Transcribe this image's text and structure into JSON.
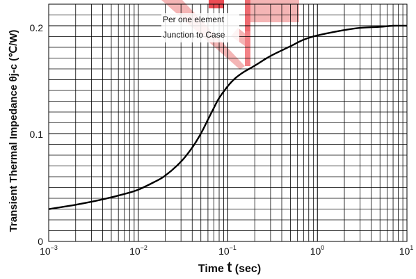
{
  "chart_data": {
    "type": "line",
    "xlabel_main": "Time ",
    "xlabel_symbol": "t",
    "xlabel_unit": " (sec)",
    "ylabel": "Transient Thermal Impedance θj-c (℃/W)",
    "x_scale": "log",
    "xlim": [
      0.001,
      10
    ],
    "ylim": [
      0,
      0.22
    ],
    "x_ticks": [
      {
        "base": "10",
        "exp": "−3"
      },
      {
        "base": "10",
        "exp": "−2"
      },
      {
        "base": "10",
        "exp": "−1"
      },
      {
        "base": "10",
        "exp": "0"
      },
      {
        "base": "10",
        "exp": "1"
      }
    ],
    "y_ticks": [
      "0",
      "0.1",
      "0.2"
    ],
    "annotations": [
      "Per one element",
      "Junction to Case"
    ],
    "grid": true,
    "line_color": "#000000",
    "watermark_color": "#e8202a",
    "series": [
      {
        "x": [
          0.001,
          0.002,
          0.004,
          0.007,
          0.01,
          0.015,
          0.02,
          0.03,
          0.04,
          0.05,
          0.06,
          0.07,
          0.08,
          0.1,
          0.12,
          0.15,
          0.2,
          0.3,
          0.5,
          0.7,
          1,
          2,
          3,
          5,
          7,
          10
        ],
        "y": [
          0.03,
          0.034,
          0.039,
          0.044,
          0.048,
          0.055,
          0.061,
          0.074,
          0.087,
          0.1,
          0.113,
          0.124,
          0.133,
          0.144,
          0.151,
          0.157,
          0.163,
          0.172,
          0.181,
          0.187,
          0.191,
          0.196,
          0.198,
          0.199,
          0.2,
          0.2
        ]
      }
    ]
  }
}
